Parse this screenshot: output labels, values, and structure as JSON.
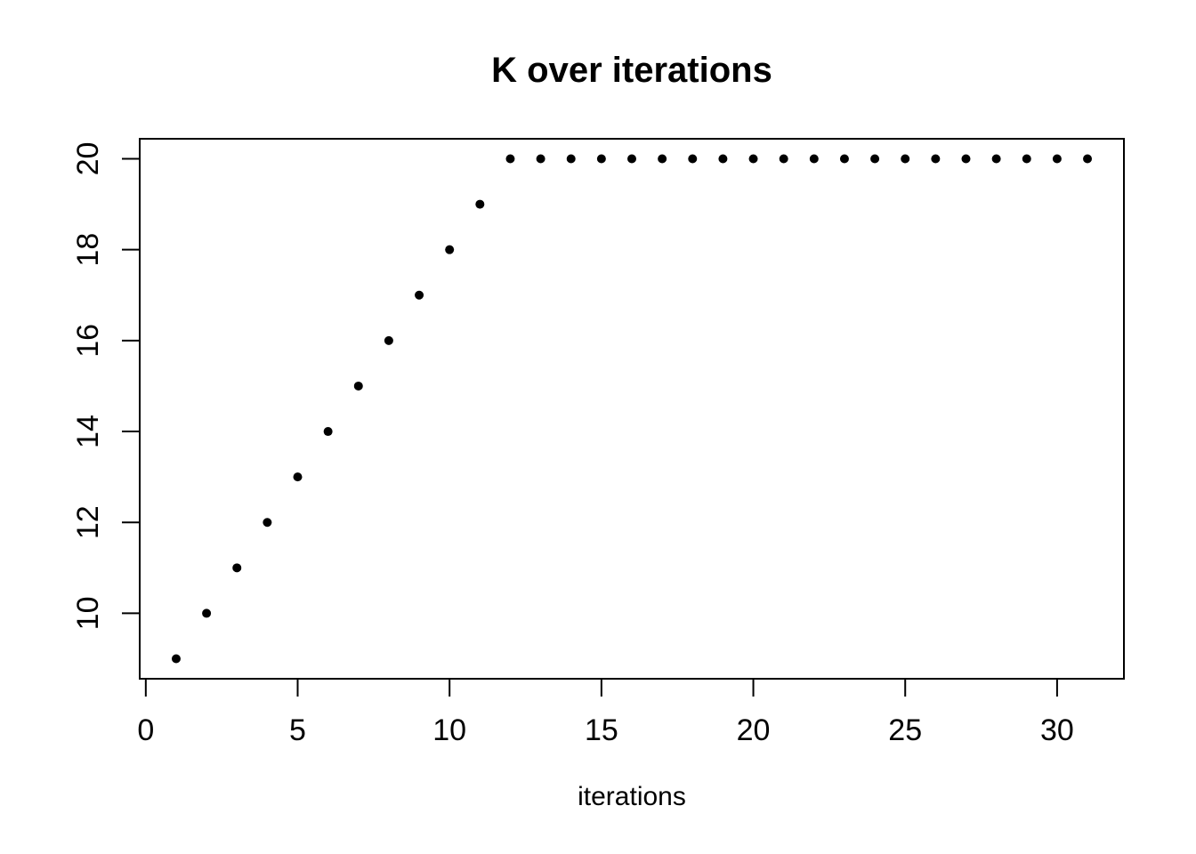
{
  "chart_data": {
    "type": "scatter",
    "title": "K over iterations",
    "xlabel": "iterations",
    "ylabel": "",
    "x": [
      1,
      2,
      3,
      4,
      5,
      6,
      7,
      8,
      9,
      10,
      11,
      12,
      13,
      14,
      15,
      16,
      17,
      18,
      19,
      20,
      21,
      22,
      23,
      24,
      25,
      26,
      27,
      28,
      29,
      30,
      31
    ],
    "y": [
      9,
      10,
      11,
      12,
      13,
      14,
      15,
      16,
      17,
      18,
      19,
      20,
      20,
      20,
      20,
      20,
      20,
      20,
      20,
      20,
      20,
      20,
      20,
      20,
      20,
      20,
      20,
      20,
      20,
      20,
      20
    ],
    "xticks": [
      0,
      5,
      10,
      15,
      20,
      25,
      30
    ],
    "yticks": [
      10,
      12,
      14,
      16,
      18,
      20
    ],
    "x_range": [
      -0.2,
      32.2
    ],
    "y_range": [
      8.56,
      20.44
    ],
    "grid": false,
    "legend": null,
    "point_shape": "filled-circle",
    "point_color": "#000000",
    "axis_color": "#000000",
    "background_color": "#ffffff"
  }
}
